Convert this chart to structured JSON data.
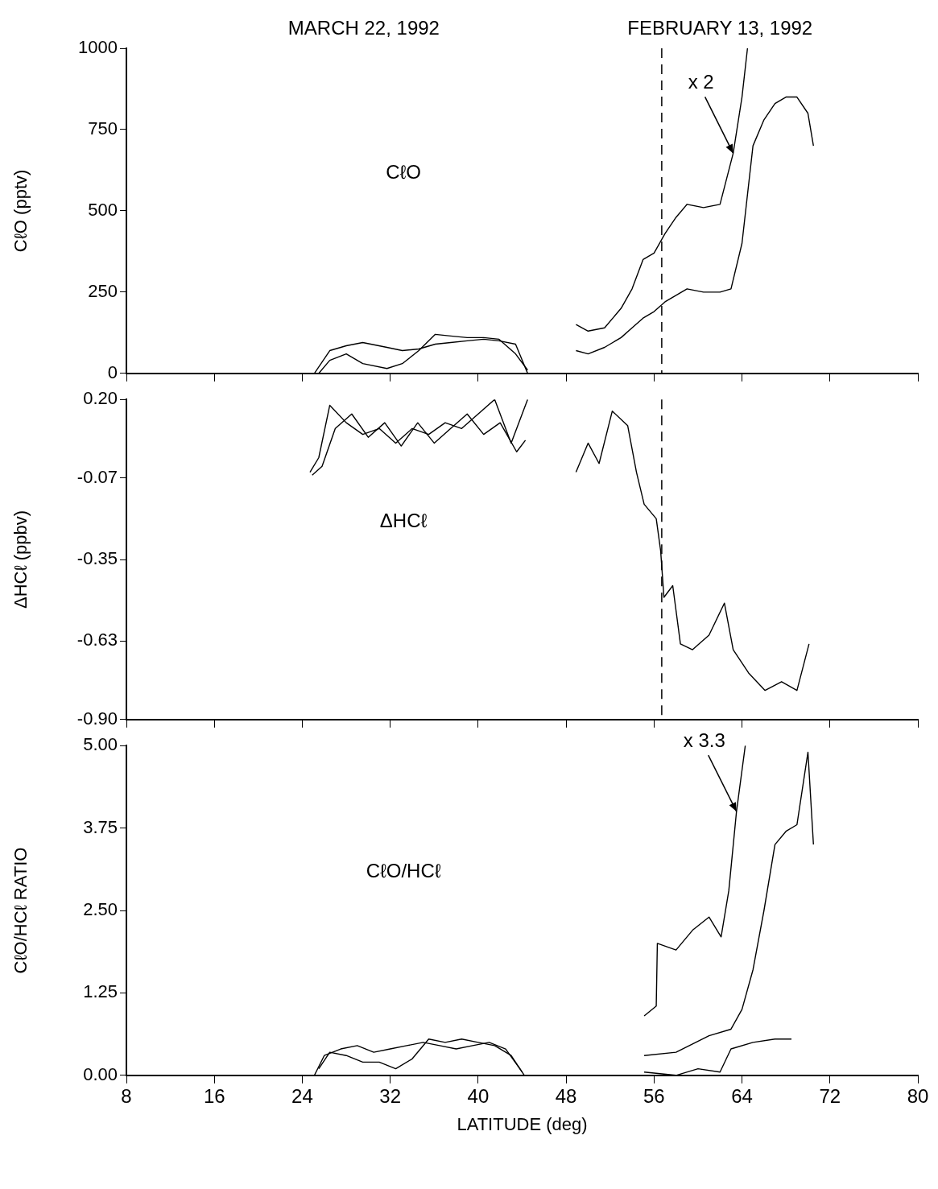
{
  "chart_data": [
    {
      "type": "line",
      "title": "CℓO",
      "ylabel": "CℓO (pptv)",
      "xlim": [
        8,
        80
      ],
      "xticks": [
        8,
        16,
        24,
        32,
        40,
        48,
        56,
        64,
        72,
        80
      ],
      "ylim": [
        0,
        1000
      ],
      "yticks": [
        0,
        250,
        500,
        750,
        1000
      ],
      "tick_labels": "y",
      "marker": "none",
      "grid": false,
      "annotations": [
        "MARCH 22, 1992",
        "FEBRUARY 13, 1992",
        {
          "text": "x 2",
          "x": 63.2,
          "y": 677
        }
      ],
      "ref_lines": [
        {
          "axis": "x",
          "value": 56.7,
          "line_style": "dashed",
          "color": "#000000"
        }
      ],
      "series": [
        {
          "color": "#000000",
          "x": [
            25.1,
            26.5,
            28,
            29.5,
            31.7,
            33.1,
            34.6,
            36.1,
            37.5,
            39,
            40.5,
            41.9,
            43.4,
            44.5
          ],
          "values": [
            0,
            70,
            85,
            95,
            80,
            70,
            75,
            90,
            95,
            100,
            105,
            100,
            90,
            0
          ]
        },
        {
          "color": "#000000",
          "x": [
            25.5,
            26.5,
            28,
            29.5,
            31.7,
            33.1,
            34.6,
            36.1,
            37.5,
            39,
            40.5,
            41.9,
            43.4,
            44.5
          ],
          "values": [
            0,
            40,
            60,
            30,
            15,
            30,
            70,
            120,
            115,
            110,
            110,
            105,
            60,
            10
          ]
        },
        {
          "color": "#000000",
          "x": [
            48.9,
            50,
            51.5,
            53,
            54,
            55,
            56,
            57,
            58,
            59,
            60.5,
            62,
            63.2,
            64,
            64.5
          ],
          "values": [
            150,
            130,
            140,
            200,
            260,
            350,
            370,
            430,
            480,
            520,
            510,
            520,
            677,
            850,
            1000
          ]
        },
        {
          "color": "#000000",
          "x": [
            48.9,
            50,
            51.5,
            53,
            54,
            55,
            56,
            57,
            58,
            59,
            60.5,
            62,
            63,
            64,
            65,
            66,
            67,
            68,
            69,
            70,
            70.5
          ],
          "values": [
            70,
            60,
            80,
            110,
            140,
            170,
            190,
            220,
            240,
            260,
            250,
            250,
            260,
            400,
            700,
            780,
            830,
            850,
            850,
            800,
            700
          ]
        }
      ]
    },
    {
      "type": "line",
      "title": "ΔHCℓ",
      "ylabel": "ΔHCℓ (ppbv)",
      "xlim": [
        8,
        80
      ],
      "xticks": [
        8,
        16,
        24,
        32,
        40,
        48,
        56,
        64,
        72,
        80
      ],
      "ylim": [
        -0.9,
        0.2
      ],
      "yticks": [
        {
          "value": -0.9,
          "label": "-0.90"
        },
        -0.63,
        -0.35,
        -0.07,
        {
          "value": 0.2,
          "label": "0.20"
        }
      ],
      "tick_labels": "y",
      "marker": "none",
      "grid": false,
      "ref_lines": [
        {
          "axis": "x",
          "value": 56.7,
          "line_style": "dashed",
          "color": "#000000"
        }
      ],
      "series": [
        {
          "color": "#000000",
          "x": [
            24.7,
            25.5,
            26.5,
            28,
            29.5,
            31,
            32.5,
            34,
            35.5,
            37,
            38.5,
            40,
            41.5,
            43,
            44.5
          ],
          "values": [
            -0.05,
            0,
            0.18,
            0.12,
            0.08,
            0.1,
            0.05,
            0.1,
            0.08,
            0.12,
            0.1,
            0.15,
            0.2,
            0.05,
            0.2
          ]
        },
        {
          "color": "#000000",
          "x": [
            24.9,
            25.8,
            27,
            28.5,
            30,
            31.5,
            33,
            34.5,
            36,
            37.5,
            39,
            40.5,
            42,
            43.5,
            44.3
          ],
          "values": [
            -0.06,
            -0.03,
            0.1,
            0.15,
            0.07,
            0.12,
            0.04,
            0.12,
            0.05,
            0.1,
            0.15,
            0.08,
            0.12,
            0.02,
            0.06
          ]
        },
        {
          "color": "#000000",
          "x": [
            48.9,
            50,
            51,
            52.2,
            53.6,
            54.4,
            55.1,
            56.2,
            56.6,
            56.9,
            57.7,
            58.4,
            59.5,
            61,
            62.4,
            63.2,
            64.6,
            66.1,
            67.6,
            69,
            70.1
          ],
          "values": [
            -0.05,
            0.05,
            -0.02,
            0.16,
            0.11,
            -0.05,
            -0.16,
            -0.21,
            -0.32,
            -0.48,
            -0.44,
            -0.64,
            -0.66,
            -0.61,
            -0.5,
            -0.66,
            -0.74,
            -0.8,
            -0.77,
            -0.8,
            -0.64
          ]
        }
      ]
    },
    {
      "type": "line",
      "title": "CℓO/HCℓ",
      "ylabel": "CℓO/HCℓ RATIO",
      "xlabel": "LATITUDE (deg)",
      "xlim": [
        8,
        80
      ],
      "xticks": [
        8,
        16,
        24,
        32,
        40,
        48,
        56,
        64,
        72,
        80
      ],
      "ylim": [
        0,
        5
      ],
      "yticks": [
        {
          "value": 0,
          "label": "0.00"
        },
        {
          "value": 1.25,
          "label": "1.25"
        },
        {
          "value": 2.5,
          "label": "2.50"
        },
        {
          "value": 3.75,
          "label": "3.75"
        },
        {
          "value": 5,
          "label": "5.00"
        }
      ],
      "marker": "none",
      "grid": false,
      "annotations": [
        {
          "text": "x 3.3",
          "x": 63.5,
          "y": 4
        }
      ],
      "series": [
        {
          "color": "#000000",
          "x": [
            25.1,
            26,
            27.5,
            29,
            30.5,
            32,
            33.5,
            35,
            36.5,
            38,
            39.5,
            41,
            42.5,
            44
          ],
          "values": [
            0,
            0.3,
            0.4,
            0.45,
            0.35,
            0.4,
            0.45,
            0.5,
            0.45,
            0.4,
            0.45,
            0.5,
            0.4,
            0.05
          ]
        },
        {
          "color": "#000000",
          "x": [
            25.5,
            26.5,
            28,
            29.5,
            31,
            32.5,
            34,
            35.5,
            37,
            38.5,
            40,
            41.5,
            43,
            44.2
          ],
          "values": [
            0.1,
            0.35,
            0.3,
            0.2,
            0.2,
            0.1,
            0.25,
            0.55,
            0.5,
            0.55,
            0.5,
            0.45,
            0.3,
            0
          ]
        },
        {
          "color": "#000000",
          "x": [
            55.1,
            56.2,
            56.3,
            58,
            59.5,
            61,
            62.1,
            62.8,
            63.5,
            64.3
          ],
          "values": [
            0.9,
            1.05,
            2,
            1.9,
            2.2,
            2.4,
            2.1,
            2.8,
            4,
            5
          ]
        },
        {
          "color": "#000000",
          "x": [
            55.1,
            58,
            61,
            63,
            64,
            65,
            66,
            67,
            68,
            69,
            70,
            70.5
          ],
          "values": [
            0.3,
            0.35,
            0.6,
            0.7,
            1,
            1.6,
            2.5,
            3.5,
            3.7,
            3.8,
            4.9,
            3.5
          ]
        },
        {
          "color": "#000000",
          "x": [
            55.1,
            58,
            60,
            62,
            63,
            65,
            67,
            68.5
          ],
          "values": [
            0.05,
            0,
            0.1,
            0.05,
            0.4,
            0.5,
            0.55,
            0.55
          ]
        }
      ]
    }
  ]
}
